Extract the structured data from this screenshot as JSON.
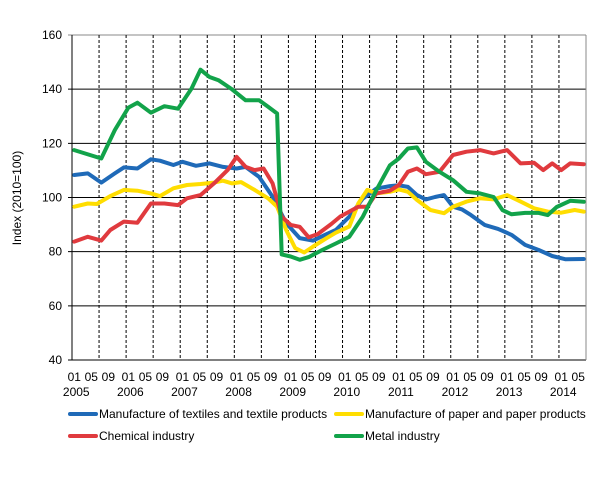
{
  "chart_data": {
    "type": "line",
    "title": "",
    "xlabel": "",
    "ylabel": "Index (2010=100)",
    "ylim": [
      40,
      160
    ],
    "yticks": [
      40,
      60,
      80,
      100,
      120,
      140,
      160
    ],
    "xrange": [
      "2005-01",
      "2014-06"
    ],
    "month_tick_labels": [
      "01",
      "05",
      "09"
    ],
    "year_labels": [
      "2005",
      "2006",
      "2007",
      "2008",
      "2009",
      "2010",
      "2011",
      "2012",
      "2013",
      "2014"
    ],
    "grid": "horizontal solid, vertical dashed every 6 months",
    "legend_position": "bottom",
    "series": [
      {
        "name": "Manufacture of textiles and textile products",
        "color": "#1f6ab8",
        "points": [
          [
            "2005-01",
            108.3
          ],
          [
            "2005-04",
            108.9
          ],
          [
            "2005-07",
            105.5
          ],
          [
            "2005-10",
            108.9
          ],
          [
            "2005-12",
            111.1
          ],
          [
            "2006-03",
            110.7
          ],
          [
            "2006-06",
            114.1
          ],
          [
            "2006-08",
            113.6
          ],
          [
            "2006-11",
            112
          ],
          [
            "2007-01",
            113.2
          ],
          [
            "2007-04",
            111.7
          ],
          [
            "2007-07",
            112.6
          ],
          [
            "2007-10",
            111.3
          ],
          [
            "2008-01",
            110.7
          ],
          [
            "2008-03",
            111.3
          ],
          [
            "2008-06",
            107.6
          ],
          [
            "2008-09",
            100.3
          ],
          [
            "2008-12",
            90.5
          ],
          [
            "2009-03",
            85
          ],
          [
            "2009-06",
            84.1
          ],
          [
            "2009-09",
            86.5
          ],
          [
            "2009-11",
            88
          ],
          [
            "2010-02",
            92.9
          ],
          [
            "2010-05",
            99.6
          ],
          [
            "2010-08",
            103.3
          ],
          [
            "2010-11",
            104.2
          ],
          [
            "2011-01",
            104.5
          ],
          [
            "2011-03",
            103.9
          ],
          [
            "2011-05",
            100.9
          ],
          [
            "2011-07",
            99.3
          ],
          [
            "2011-09",
            100.2
          ],
          [
            "2011-11",
            100.9
          ],
          [
            "2012-01",
            96.6
          ],
          [
            "2012-03",
            95.6
          ],
          [
            "2012-05",
            93.5
          ],
          [
            "2012-08",
            89.9
          ],
          [
            "2012-11",
            88.4
          ],
          [
            "2013-02",
            86.2
          ],
          [
            "2013-05",
            82.5
          ],
          [
            "2013-08",
            80.6
          ],
          [
            "2013-11",
            78.4
          ],
          [
            "2014-02",
            77.2
          ],
          [
            "2014-06",
            77.3
          ]
        ]
      },
      {
        "name": "Manufacture of paper and paper products",
        "color": "#ffdd00",
        "points": [
          [
            "2005-01",
            96.6
          ],
          [
            "2005-04",
            97.8
          ],
          [
            "2005-06",
            97.6
          ],
          [
            "2005-09",
            100.5
          ],
          [
            "2005-12",
            102.8
          ],
          [
            "2006-03",
            102.5
          ],
          [
            "2006-06",
            101.5
          ],
          [
            "2006-08",
            100.5
          ],
          [
            "2006-11",
            103.4
          ],
          [
            "2007-02",
            104.6
          ],
          [
            "2007-05",
            105
          ],
          [
            "2007-08",
            105.5
          ],
          [
            "2007-10",
            106.2
          ],
          [
            "2007-12",
            105.2
          ],
          [
            "2008-02",
            105.7
          ],
          [
            "2008-05",
            102.8
          ],
          [
            "2008-08",
            99.7
          ],
          [
            "2008-10",
            96.6
          ],
          [
            "2008-12",
            88
          ],
          [
            "2009-02",
            81.3
          ],
          [
            "2009-04",
            79.7
          ],
          [
            "2009-06",
            81.9
          ],
          [
            "2009-09",
            85
          ],
          [
            "2009-11",
            87
          ],
          [
            "2010-02",
            89.3
          ],
          [
            "2010-04",
            97.8
          ],
          [
            "2010-06",
            102.8
          ],
          [
            "2010-08",
            101.5
          ],
          [
            "2010-11",
            102.1
          ],
          [
            "2011-01",
            103
          ],
          [
            "2011-03",
            102.1
          ],
          [
            "2011-05",
            99.1
          ],
          [
            "2011-08",
            95.4
          ],
          [
            "2011-11",
            94.2
          ],
          [
            "2012-01",
            96.6
          ],
          [
            "2012-04",
            98.5
          ],
          [
            "2012-07",
            99.7
          ],
          [
            "2012-10",
            99.3
          ],
          [
            "2013-01",
            100.9
          ],
          [
            "2013-04",
            98.5
          ],
          [
            "2013-07",
            96
          ],
          [
            "2013-10",
            94.8
          ],
          [
            "2014-01",
            94.4
          ],
          [
            "2014-04",
            95.4
          ],
          [
            "2014-06",
            94.8
          ]
        ]
      },
      {
        "name": "Chemical industry",
        "color": "#e03a3e",
        "points": [
          [
            "2005-01",
            83.7
          ],
          [
            "2005-04",
            85.5
          ],
          [
            "2005-07",
            84.1
          ],
          [
            "2005-09",
            88
          ],
          [
            "2005-12",
            91.1
          ],
          [
            "2006-03",
            90.7
          ],
          [
            "2006-06",
            97.8
          ],
          [
            "2006-09",
            97.8
          ],
          [
            "2006-12",
            97.2
          ],
          [
            "2007-02",
            99.7
          ],
          [
            "2007-05",
            100.9
          ],
          [
            "2007-08",
            105.2
          ],
          [
            "2007-11",
            110.1
          ],
          [
            "2008-01",
            115
          ],
          [
            "2008-03",
            111.3
          ],
          [
            "2008-05",
            110.1
          ],
          [
            "2008-07",
            110.7
          ],
          [
            "2008-09",
            105.2
          ],
          [
            "2008-11",
            92.9
          ],
          [
            "2009-01",
            89.9
          ],
          [
            "2009-03",
            89.2
          ],
          [
            "2009-05",
            85.3
          ],
          [
            "2009-07",
            86.5
          ],
          [
            "2009-10",
            90.2
          ],
          [
            "2009-12",
            93
          ],
          [
            "2010-02",
            94.8
          ],
          [
            "2010-04",
            96.6
          ],
          [
            "2010-06",
            96.6
          ],
          [
            "2010-08",
            101.5
          ],
          [
            "2010-11",
            102.5
          ],
          [
            "2011-01",
            104.6
          ],
          [
            "2011-03",
            109.5
          ],
          [
            "2011-05",
            110.7
          ],
          [
            "2011-07",
            108.6
          ],
          [
            "2011-10",
            109.5
          ],
          [
            "2012-01",
            115.7
          ],
          [
            "2012-04",
            116.9
          ],
          [
            "2012-07",
            117.5
          ],
          [
            "2012-10",
            116.3
          ],
          [
            "2013-01",
            117.5
          ],
          [
            "2013-04",
            112.6
          ],
          [
            "2013-07",
            112.8
          ],
          [
            "2013-09",
            110.1
          ],
          [
            "2013-11",
            112.6
          ],
          [
            "2014-01",
            110.1
          ],
          [
            "2014-03",
            112.6
          ],
          [
            "2014-06",
            112.3
          ]
        ]
      },
      {
        "name": "Metal industry",
        "color": "#12a34a",
        "points": [
          [
            "2005-01",
            117.5
          ],
          [
            "2005-07",
            114.4
          ],
          [
            "2005-10",
            124.9
          ],
          [
            "2006-01",
            133.2
          ],
          [
            "2006-03",
            135
          ],
          [
            "2006-06",
            131.3
          ],
          [
            "2006-09",
            133.7
          ],
          [
            "2006-12",
            132.8
          ],
          [
            "2007-03",
            140.2
          ],
          [
            "2007-05",
            147.2
          ],
          [
            "2007-07",
            144.5
          ],
          [
            "2007-09",
            143.3
          ],
          [
            "2007-12",
            139.9
          ],
          [
            "2008-03",
            135.9
          ],
          [
            "2008-06",
            135.9
          ],
          [
            "2008-08",
            133.5
          ],
          [
            "2008-10",
            131
          ],
          [
            "2008-11",
            79
          ],
          [
            "2009-01",
            78.2
          ],
          [
            "2009-03",
            77
          ],
          [
            "2009-05",
            78
          ],
          [
            "2009-08",
            80.6
          ],
          [
            "2009-11",
            83
          ],
          [
            "2010-02",
            85.5
          ],
          [
            "2010-05",
            92.9
          ],
          [
            "2010-08",
            102.7
          ],
          [
            "2010-11",
            111.9
          ],
          [
            "2011-01",
            114.4
          ],
          [
            "2011-03",
            118.1
          ],
          [
            "2011-05",
            118.5
          ],
          [
            "2011-07",
            113.2
          ],
          [
            "2011-10",
            109.5
          ],
          [
            "2012-01",
            106.4
          ],
          [
            "2012-04",
            102.1
          ],
          [
            "2012-07",
            101.5
          ],
          [
            "2012-10",
            100.2
          ],
          [
            "2012-12",
            95.3
          ],
          [
            "2013-02",
            93.8
          ],
          [
            "2013-05",
            94.3
          ],
          [
            "2013-08",
            94.3
          ],
          [
            "2013-10",
            93.5
          ],
          [
            "2013-12",
            96.5
          ],
          [
            "2014-03",
            98.8
          ],
          [
            "2014-06",
            98.4
          ]
        ]
      }
    ]
  }
}
